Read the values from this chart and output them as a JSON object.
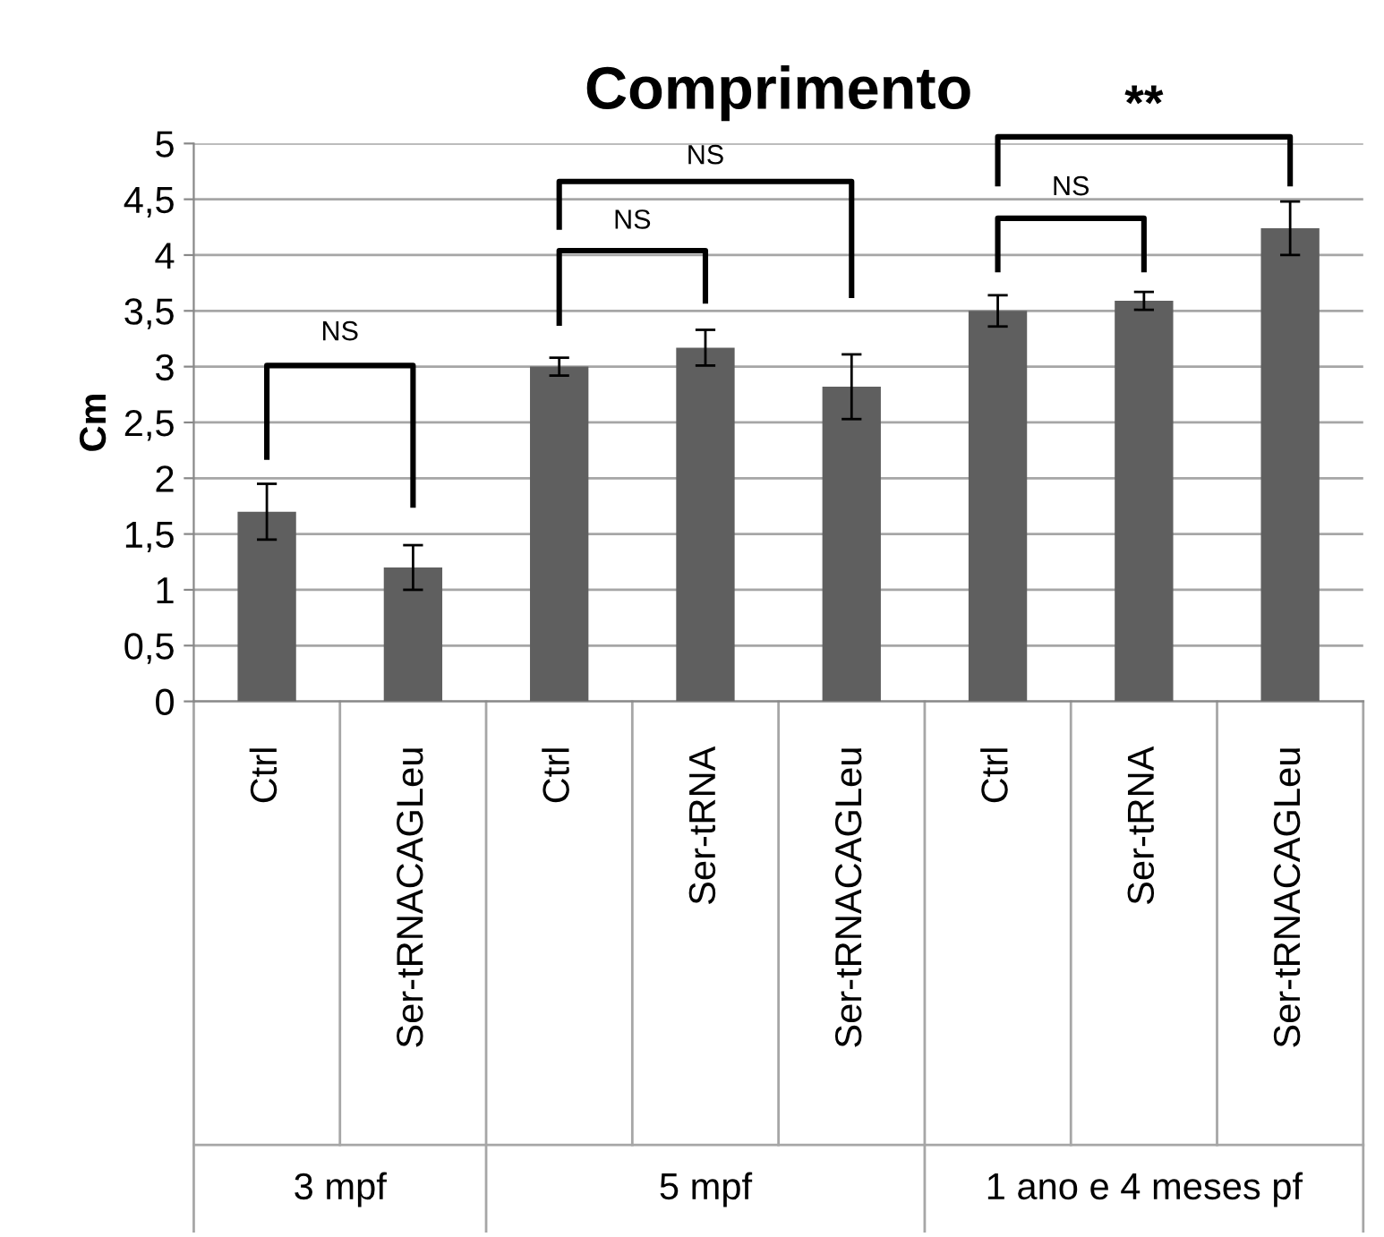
{
  "chart_data": {
    "type": "bar",
    "title": "Comprimento",
    "ylabel": "Cm",
    "categories": [
      "Ctrl",
      "Ser-tRNACAGLeu",
      "Ctrl",
      "Ser-tRNA",
      "Ser-tRNACAGLeu",
      "Ctrl",
      "Ser-tRNA",
      "Ser-tRNACAGLeu"
    ],
    "values": [
      1.7,
      1.2,
      3.0,
      3.17,
      2.82,
      3.5,
      3.59,
      4.24
    ],
    "errors": [
      0.25,
      0.2,
      0.08,
      0.16,
      0.29,
      0.14,
      0.08,
      0.24
    ],
    "color": "#5f5f5f",
    "ylim": [
      0,
      5
    ],
    "yticks": [
      0,
      {
        "value": 0.5,
        "label": "0,5"
      },
      1,
      {
        "value": 1.5,
        "label": "1,5"
      },
      2,
      {
        "value": 2.5,
        "label": "2,5"
      },
      3,
      {
        "value": 3.5,
        "label": "3,5"
      },
      4,
      {
        "value": 4.5,
        "label": "4,5"
      },
      5
    ],
    "grid": "y",
    "annotations": [
      "NS",
      "NS",
      "NS",
      "NS",
      "**",
      "3 mpf",
      "5 mpf",
      "1 ano e 4 meses pf"
    ]
  }
}
